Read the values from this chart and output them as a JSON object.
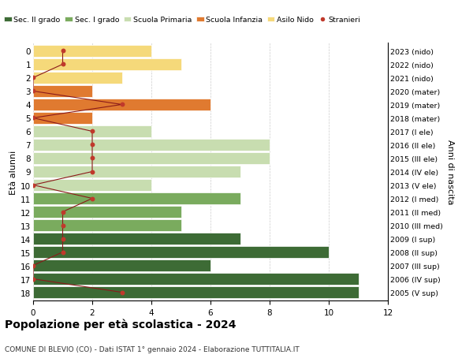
{
  "ages": [
    18,
    17,
    16,
    15,
    14,
    13,
    12,
    11,
    10,
    9,
    8,
    7,
    6,
    5,
    4,
    3,
    2,
    1,
    0
  ],
  "right_labels": [
    "2005 (V sup)",
    "2006 (IV sup)",
    "2007 (III sup)",
    "2008 (II sup)",
    "2009 (I sup)",
    "2010 (III med)",
    "2011 (II med)",
    "2012 (I med)",
    "2013 (V ele)",
    "2014 (IV ele)",
    "2015 (III ele)",
    "2016 (II ele)",
    "2017 (I ele)",
    "2018 (mater)",
    "2019 (mater)",
    "2020 (mater)",
    "2021 (nido)",
    "2022 (nido)",
    "2023 (nido)"
  ],
  "bar_values": [
    11,
    11,
    6,
    10,
    7,
    5,
    5,
    7,
    4,
    7,
    8,
    8,
    4,
    2,
    6,
    2,
    3,
    5,
    4
  ],
  "bar_colors": [
    "#3d6b35",
    "#3d6b35",
    "#3d6b35",
    "#3d6b35",
    "#3d6b35",
    "#7aab5e",
    "#7aab5e",
    "#7aab5e",
    "#c8ddb0",
    "#c8ddb0",
    "#c8ddb0",
    "#c8ddb0",
    "#c8ddb0",
    "#e07a30",
    "#e07a30",
    "#e07a30",
    "#f5d97a",
    "#f5d97a",
    "#f5d97a"
  ],
  "stranieri_x": [
    3,
    0,
    0,
    1,
    1,
    1,
    1,
    2,
    0,
    2,
    2,
    2,
    2,
    0,
    3,
    0,
    0,
    1,
    1
  ],
  "legend_labels": [
    "Sec. II grado",
    "Sec. I grado",
    "Scuola Primaria",
    "Scuola Infanzia",
    "Asilo Nido",
    "Stranieri"
  ],
  "legend_colors": [
    "#3d6b35",
    "#7aab5e",
    "#c8ddb0",
    "#e07a30",
    "#f5d97a",
    "#c0392b"
  ],
  "title": "Popolazione per età scolastica - 2024",
  "subtitle": "COMUNE DI BLEVIO (CO) - Dati ISTAT 1° gennaio 2024 - Elaborazione TUTTITALIA.IT",
  "ylabel_left": "Età alunni",
  "ylabel_right": "Anni di nascita",
  "xlim": [
    0,
    12
  ],
  "bg_color": "#ffffff",
  "grid_color": "#cccccc",
  "bar_height": 0.85
}
